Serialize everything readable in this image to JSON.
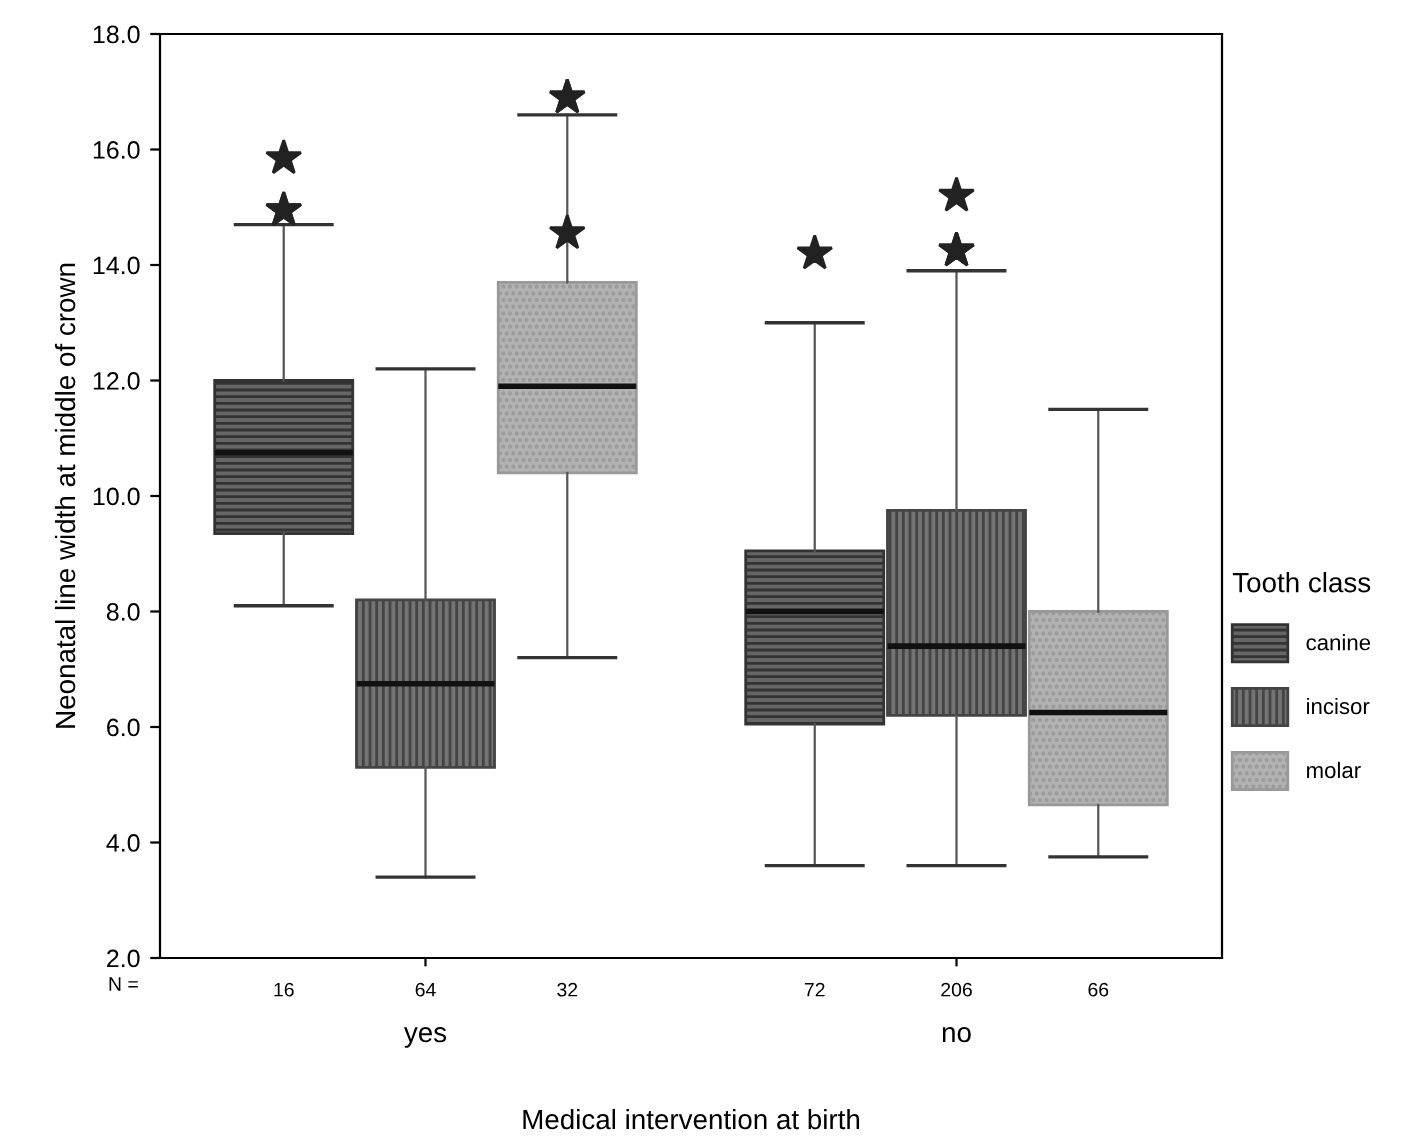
{
  "chart_data": {
    "type": "box",
    "xlabel": "Medical intervention at birth",
    "ylabel": "Neonatal line width at middle of crown",
    "legend_title": "Tooth class",
    "categories": [
      "yes",
      "no"
    ],
    "series": [
      {
        "name": "canine",
        "color": "#333333",
        "boxes": [
          {
            "low": 8.1,
            "q1": 9.35,
            "median": 10.75,
            "q3": 12.0,
            "high": 14.7,
            "outliers": [
              14.95,
              14.95,
              15.85
            ]
          },
          {
            "low": 3.6,
            "q1": 6.05,
            "median": 8.0,
            "q3": 9.05,
            "high": 13.0,
            "outliers": [
              14.2
            ]
          }
        ]
      },
      {
        "name": "incisor",
        "color": "#444444",
        "boxes": [
          {
            "low": 3.4,
            "q1": 5.3,
            "median": 6.75,
            "q3": 8.2,
            "high": 12.2
          },
          {
            "low": 3.6,
            "q1": 6.2,
            "median": 7.4,
            "q3": 9.75,
            "high": 13.9,
            "outliers": [
              14.25,
              14.25,
              15.2
            ]
          }
        ]
      },
      {
        "name": "molar",
        "color": "#999999",
        "boxes": [
          {
            "low": 7.2,
            "q1": 10.4,
            "median": 11.9,
            "q3": 13.7,
            "high": 16.6,
            "outliers": [
              14.55,
              16.9,
              16.9
            ]
          },
          {
            "low": 3.75,
            "q1": 4.65,
            "median": 6.25,
            "q3": 8.0,
            "high": 11.5
          }
        ]
      }
    ],
    "ylim": [
      2.0,
      18.0
    ],
    "yticks": [
      {
        "value": 2,
        "label": "2.0"
      },
      {
        "value": 4,
        "label": "4.0"
      },
      {
        "value": 6,
        "label": "6.0"
      },
      {
        "value": 8,
        "label": "8.0"
      },
      {
        "value": 10,
        "label": "10.0"
      },
      {
        "value": 12,
        "label": "12.0"
      },
      {
        "value": 14,
        "label": "14.0"
      },
      {
        "value": 16,
        "label": "16.0"
      },
      {
        "value": 18,
        "label": "18.0"
      }
    ],
    "annotations": [
      "N =",
      "16",
      "64",
      "32",
      "72",
      "206",
      "66"
    ],
    "marker": "star",
    "grid": false,
    "legend": "right"
  }
}
